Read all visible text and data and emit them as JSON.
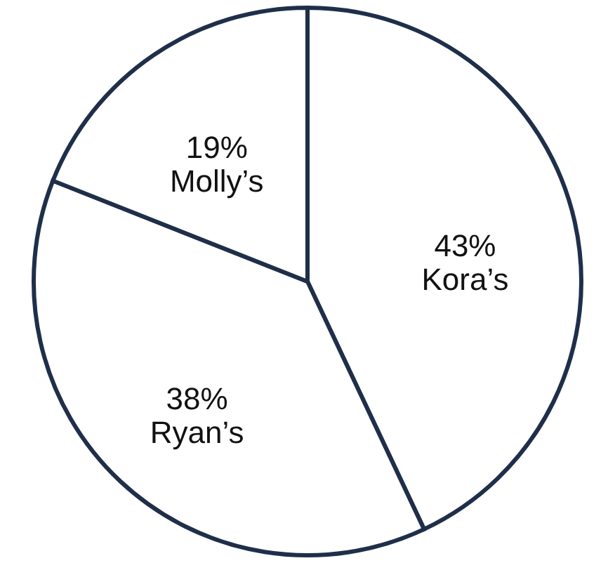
{
  "chart_data": {
    "type": "pie",
    "categories": [
      "Kora’s",
      "Ryan’s",
      "Molly’s"
    ],
    "values": [
      43,
      38,
      19
    ],
    "value_labels": [
      "43%",
      "38%",
      "19%"
    ],
    "colors": [
      "#ffffff",
      "#ffffff",
      "#ffffff"
    ]
  }
}
